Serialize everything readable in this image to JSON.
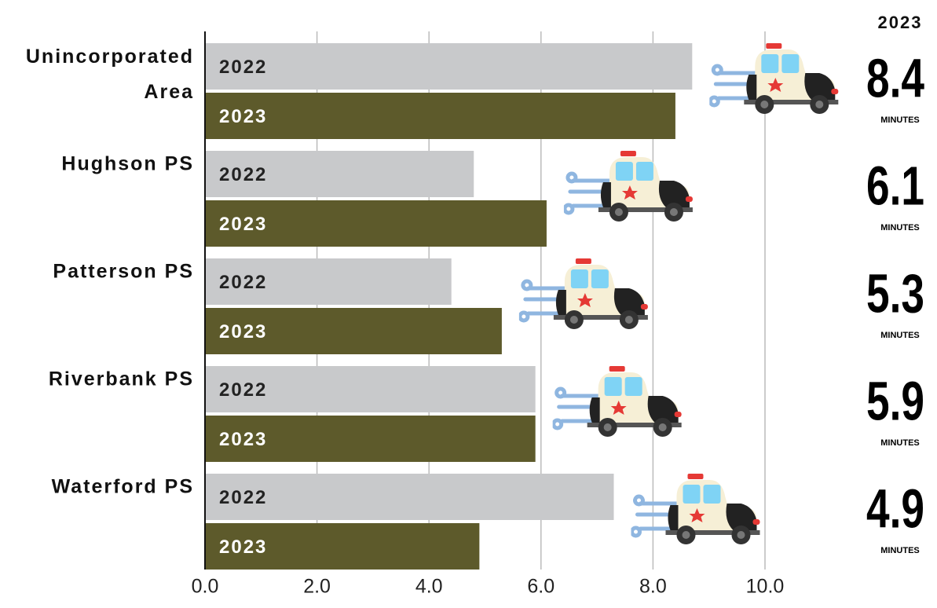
{
  "chart_data": {
    "type": "bar",
    "orientation": "horizontal",
    "categories": [
      "Unincorporated Area",
      "Hughson PS",
      "Patterson PS",
      "Riverbank PS",
      "Waterford PS"
    ],
    "series": [
      {
        "name": "2022",
        "color": "#c8c9cb",
        "values": [
          8.7,
          4.8,
          4.4,
          5.9,
          7.3
        ]
      },
      {
        "name": "2023",
        "color": "#5d5a2b",
        "values": [
          8.4,
          6.1,
          5.3,
          5.9,
          4.9
        ]
      }
    ],
    "unit_label": "MINUTES",
    "xlim": [
      0,
      10
    ],
    "xticks": [
      {
        "value": 0,
        "label": "0.0"
      },
      {
        "value": 2,
        "label": "2.0"
      },
      {
        "value": 4,
        "label": "4.0"
      },
      {
        "value": 6,
        "label": "6.0"
      },
      {
        "value": 8,
        "label": "8.0"
      },
      {
        "value": 10,
        "label": "10.0"
      }
    ],
    "grid": true
  }
}
